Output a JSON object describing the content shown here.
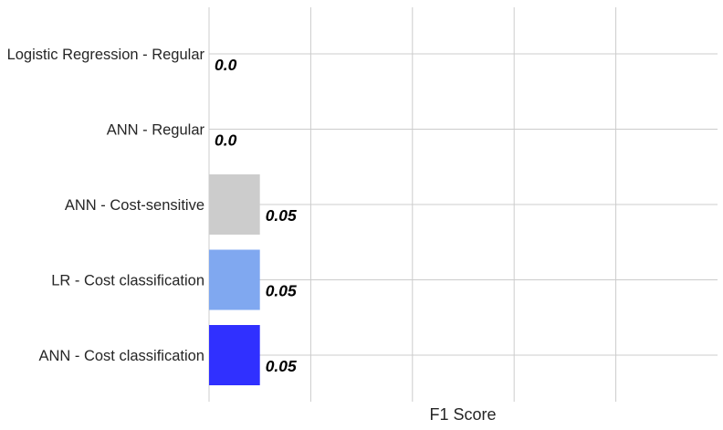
{
  "chart_data": {
    "type": "bar",
    "orientation": "horizontal",
    "categories": [
      "Logistic Regression - Regular",
      "ANN - Regular",
      "ANN - Cost-sensitive",
      "LR - Cost classification",
      "ANN - Cost classification"
    ],
    "values": [
      0.0,
      0.0,
      0.05,
      0.05,
      0.05
    ],
    "value_labels": [
      "0.0",
      "0.0",
      "0.05",
      "0.05",
      "0.05"
    ],
    "bar_colors": [
      "#ffffff",
      "#ffffff",
      "#cccccc",
      "#80a8f0",
      "#3030ff"
    ],
    "title": "",
    "xlabel": "F1 Score",
    "ylabel": "",
    "xlim": [
      0,
      0.5
    ],
    "x_gridlines": [
      0,
      0.1,
      0.2,
      0.3,
      0.4
    ],
    "grid": true,
    "x_tick_labels_visible": false
  }
}
